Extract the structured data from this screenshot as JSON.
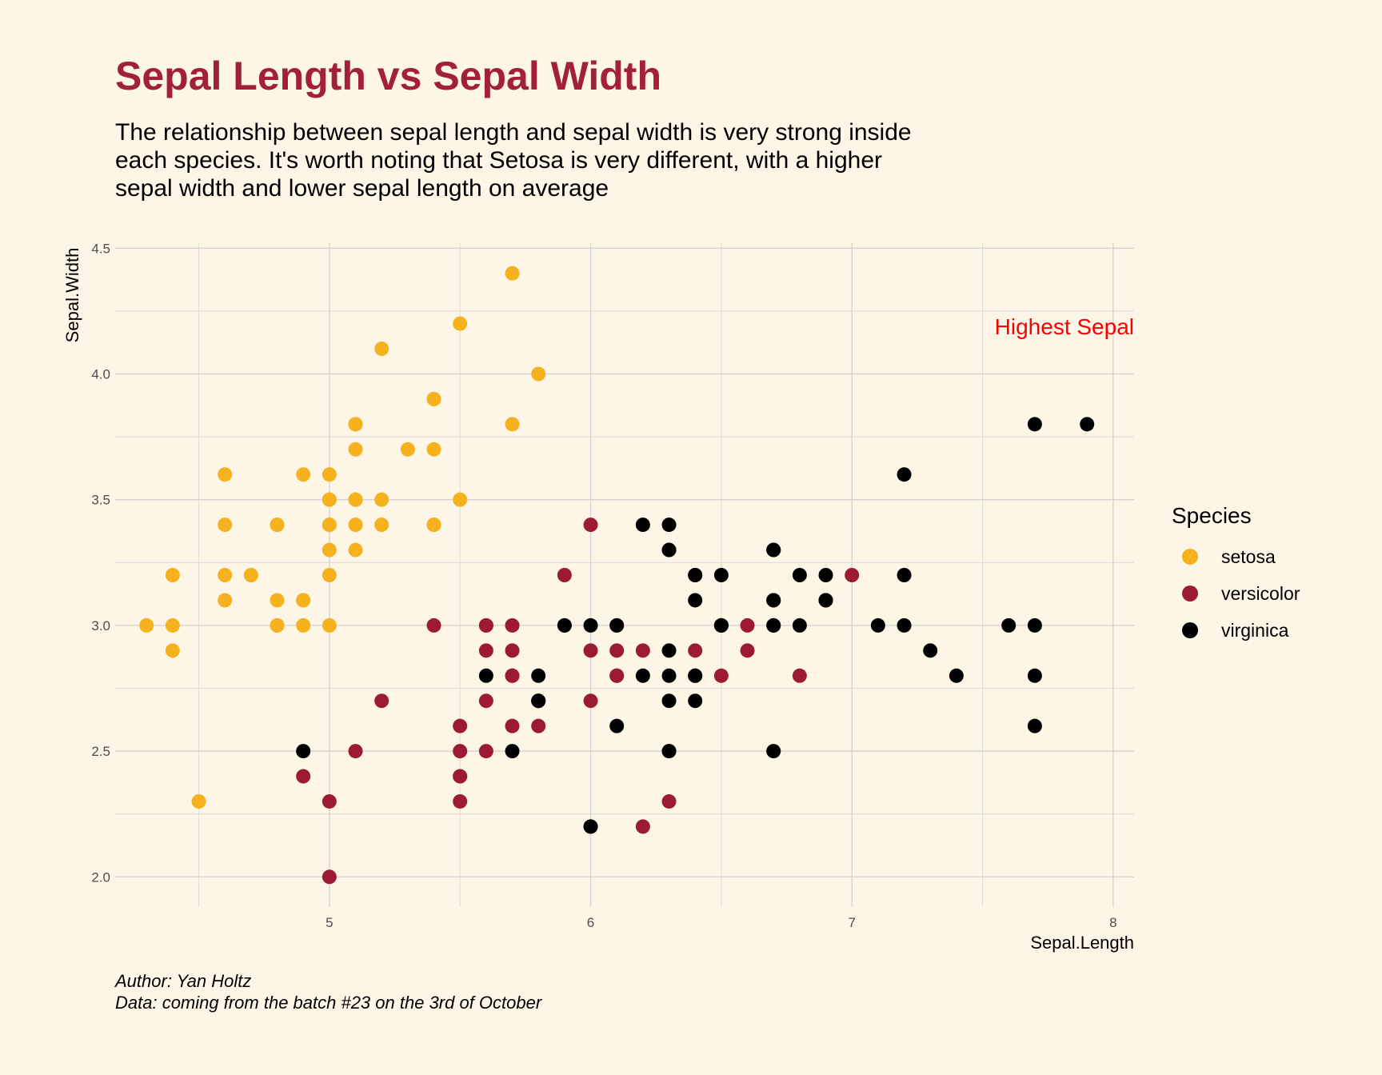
{
  "title": "Sepal Length vs Sepal Width",
  "subtitle_lines": [
    "The relationship between sepal length and sepal width is very strong inside",
    "each species. It's worth noting that Setosa is very different, with a higher",
    "sepal width and lower sepal length on average"
  ],
  "caption_lines": [
    "Author: Yan Holtz",
    "Data: coming from the batch #23 on the 3rd of October"
  ],
  "annotation": {
    "text": "Highest Sepal",
    "color": "#ff0000"
  },
  "chart_data": {
    "type": "scatter",
    "xlabel": "Sepal.Length",
    "ylabel": "Sepal.Width",
    "xlim": [
      4.18,
      8.08
    ],
    "ylim": [
      1.88,
      4.52
    ],
    "x_ticks": [
      5,
      6,
      7,
      8
    ],
    "y_ticks": [
      2.0,
      2.5,
      3.0,
      3.5,
      4.0,
      4.5
    ],
    "x_tick_labels": [
      "5",
      "6",
      "7",
      "8"
    ],
    "y_tick_labels": [
      "2.0",
      "2.5",
      "3.0",
      "3.5",
      "4.0",
      "4.5"
    ],
    "grid": true,
    "legend": {
      "title": "Species",
      "position": "right"
    },
    "series": [
      {
        "name": "setosa",
        "color": "#f5b21e",
        "points": [
          [
            5.1,
            3.5
          ],
          [
            4.9,
            3.0
          ],
          [
            4.7,
            3.2
          ],
          [
            4.6,
            3.1
          ],
          [
            5.0,
            3.6
          ],
          [
            5.4,
            3.9
          ],
          [
            4.6,
            3.4
          ],
          [
            5.0,
            3.4
          ],
          [
            4.4,
            2.9
          ],
          [
            4.9,
            3.1
          ],
          [
            5.4,
            3.7
          ],
          [
            4.8,
            3.4
          ],
          [
            4.8,
            3.0
          ],
          [
            4.3,
            3.0
          ],
          [
            5.8,
            4.0
          ],
          [
            5.7,
            4.4
          ],
          [
            5.4,
            3.9
          ],
          [
            5.1,
            3.5
          ],
          [
            5.7,
            3.8
          ],
          [
            5.1,
            3.8
          ],
          [
            5.4,
            3.4
          ],
          [
            5.1,
            3.7
          ],
          [
            4.6,
            3.6
          ],
          [
            5.1,
            3.3
          ],
          [
            4.8,
            3.4
          ],
          [
            5.0,
            3.0
          ],
          [
            5.0,
            3.4
          ],
          [
            5.2,
            3.5
          ],
          [
            5.2,
            3.4
          ],
          [
            4.7,
            3.2
          ],
          [
            4.8,
            3.1
          ],
          [
            5.4,
            3.4
          ],
          [
            5.2,
            4.1
          ],
          [
            5.5,
            4.2
          ],
          [
            4.9,
            3.1
          ],
          [
            5.0,
            3.2
          ],
          [
            5.5,
            3.5
          ],
          [
            4.9,
            3.6
          ],
          [
            4.4,
            3.0
          ],
          [
            5.1,
            3.4
          ],
          [
            5.0,
            3.5
          ],
          [
            4.5,
            2.3
          ],
          [
            4.4,
            3.2
          ],
          [
            5.0,
            3.5
          ],
          [
            5.1,
            3.8
          ],
          [
            4.8,
            3.0
          ],
          [
            5.1,
            3.8
          ],
          [
            4.6,
            3.2
          ],
          [
            5.3,
            3.7
          ],
          [
            5.0,
            3.3
          ]
        ]
      },
      {
        "name": "versicolor",
        "color": "#9c1b33",
        "points": [
          [
            7.0,
            3.2
          ],
          [
            6.4,
            3.2
          ],
          [
            6.9,
            3.1
          ],
          [
            5.5,
            2.3
          ],
          [
            6.5,
            2.8
          ],
          [
            5.7,
            2.8
          ],
          [
            6.3,
            3.3
          ],
          [
            4.9,
            2.4
          ],
          [
            6.6,
            2.9
          ],
          [
            5.2,
            2.7
          ],
          [
            5.0,
            2.0
          ],
          [
            5.9,
            3.0
          ],
          [
            6.0,
            2.2
          ],
          [
            6.1,
            2.9
          ],
          [
            5.6,
            2.9
          ],
          [
            6.7,
            3.1
          ],
          [
            5.6,
            3.0
          ],
          [
            5.8,
            2.7
          ],
          [
            6.2,
            2.2
          ],
          [
            5.6,
            2.5
          ],
          [
            5.9,
            3.2
          ],
          [
            6.1,
            2.8
          ],
          [
            6.3,
            2.5
          ],
          [
            6.1,
            2.8
          ],
          [
            6.4,
            2.9
          ],
          [
            6.6,
            3.0
          ],
          [
            6.8,
            2.8
          ],
          [
            6.7,
            3.0
          ],
          [
            6.0,
            2.9
          ],
          [
            5.7,
            2.6
          ],
          [
            5.5,
            2.4
          ],
          [
            5.5,
            2.4
          ],
          [
            5.8,
            2.7
          ],
          [
            6.0,
            2.7
          ],
          [
            5.4,
            3.0
          ],
          [
            6.0,
            3.4
          ],
          [
            6.7,
            3.1
          ],
          [
            6.3,
            2.3
          ],
          [
            5.6,
            3.0
          ],
          [
            5.5,
            2.5
          ],
          [
            5.5,
            2.6
          ],
          [
            6.1,
            3.0
          ],
          [
            5.8,
            2.6
          ],
          [
            5.0,
            2.3
          ],
          [
            5.6,
            2.7
          ],
          [
            5.7,
            3.0
          ],
          [
            5.7,
            2.9
          ],
          [
            6.2,
            2.9
          ],
          [
            5.1,
            2.5
          ],
          [
            5.7,
            2.8
          ]
        ]
      },
      {
        "name": "virginica",
        "color": "#000000",
        "points": [
          [
            6.3,
            3.3
          ],
          [
            5.8,
            2.7
          ],
          [
            7.1,
            3.0
          ],
          [
            6.3,
            2.9
          ],
          [
            6.5,
            3.0
          ],
          [
            7.6,
            3.0
          ],
          [
            4.9,
            2.5
          ],
          [
            7.3,
            2.9
          ],
          [
            6.7,
            2.5
          ],
          [
            7.2,
            3.6
          ],
          [
            6.5,
            3.2
          ],
          [
            6.4,
            2.7
          ],
          [
            6.8,
            3.0
          ],
          [
            5.7,
            2.5
          ],
          [
            5.8,
            2.8
          ],
          [
            6.4,
            3.2
          ],
          [
            6.5,
            3.0
          ],
          [
            7.7,
            3.8
          ],
          [
            7.7,
            2.6
          ],
          [
            6.0,
            2.2
          ],
          [
            6.9,
            3.2
          ],
          [
            5.6,
            2.8
          ],
          [
            7.7,
            2.8
          ],
          [
            6.3,
            2.7
          ],
          [
            6.7,
            3.3
          ],
          [
            7.2,
            3.2
          ],
          [
            6.2,
            2.8
          ],
          [
            6.1,
            3.0
          ],
          [
            6.4,
            2.8
          ],
          [
            7.2,
            3.0
          ],
          [
            7.4,
            2.8
          ],
          [
            7.9,
            3.8
          ],
          [
            6.4,
            2.8
          ],
          [
            6.3,
            2.8
          ],
          [
            6.1,
            2.6
          ],
          [
            7.7,
            3.0
          ],
          [
            6.3,
            3.4
          ],
          [
            6.4,
            3.1
          ],
          [
            6.0,
            3.0
          ],
          [
            6.9,
            3.1
          ],
          [
            6.7,
            3.1
          ],
          [
            6.9,
            3.1
          ],
          [
            5.8,
            2.7
          ],
          [
            6.8,
            3.2
          ],
          [
            6.7,
            3.3
          ],
          [
            6.7,
            3.0
          ],
          [
            6.3,
            2.5
          ],
          [
            6.5,
            3.0
          ],
          [
            6.2,
            3.4
          ],
          [
            5.9,
            3.0
          ]
        ]
      }
    ]
  }
}
